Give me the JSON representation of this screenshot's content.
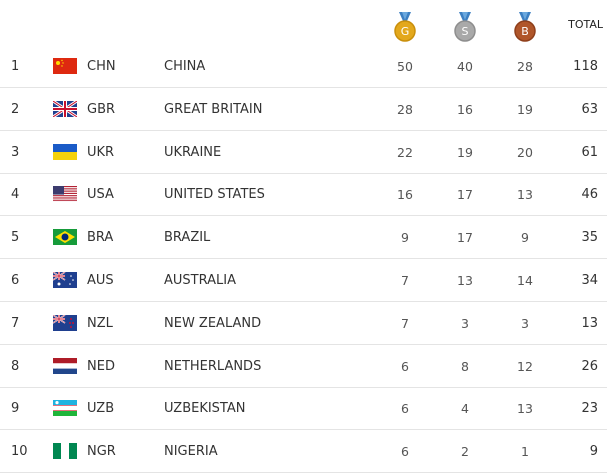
{
  "header": {
    "medals": [
      "G",
      "S",
      "B"
    ],
    "total": "TOTAL"
  },
  "table": {
    "rows": [
      [
        1,
        "CHN",
        "CHINA",
        50,
        40,
        28,
        118
      ],
      [
        2,
        "GBR",
        "GREAT BRITAIN",
        28,
        16,
        19,
        63
      ],
      [
        3,
        "UKR",
        "UKRAINE",
        22,
        19,
        20,
        61
      ],
      [
        4,
        "USA",
        "UNITED STATES",
        16,
        17,
        13,
        46
      ],
      [
        5,
        "BRA",
        "BRAZIL",
        9,
        17,
        9,
        35
      ],
      [
        6,
        "AUS",
        "AUSTRALIA",
        7,
        13,
        14,
        34
      ],
      [
        7,
        "NZL",
        "NEW ZEALAND",
        7,
        3,
        3,
        13
      ],
      [
        8,
        "NED",
        "NETHERLANDS",
        6,
        8,
        12,
        26
      ],
      [
        9,
        "UZB",
        "UZBEKISTAN",
        6,
        4,
        13,
        23
      ],
      [
        10,
        "NGR",
        "NIGERIA",
        6,
        2,
        1,
        9
      ]
    ]
  }
}
